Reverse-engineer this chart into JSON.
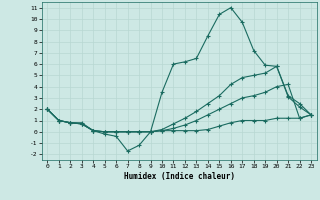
{
  "xlabel": "Humidex (Indice chaleur)",
  "bg_color": "#cde8e4",
  "grid_color": "#b8d8d2",
  "line_color": "#1a6b60",
  "xlim": [
    -0.5,
    23.5
  ],
  "ylim": [
    -2.5,
    11.5
  ],
  "xticks": [
    0,
    1,
    2,
    3,
    4,
    5,
    6,
    7,
    8,
    9,
    10,
    11,
    12,
    13,
    14,
    15,
    16,
    17,
    18,
    19,
    20,
    21,
    22,
    23
  ],
  "yticks": [
    -2,
    -1,
    0,
    1,
    2,
    3,
    4,
    5,
    6,
    7,
    8,
    9,
    10,
    11
  ],
  "lines": [
    {
      "x": [
        0,
        1,
        2,
        3,
        4,
        5,
        6,
        7,
        8,
        9,
        10,
        11,
        12,
        13,
        14,
        15,
        16,
        17,
        18,
        19,
        20,
        21,
        22,
        23
      ],
      "y": [
        2,
        1,
        0.8,
        0.8,
        0.1,
        -0.2,
        -0.4,
        -1.7,
        -1.2,
        0.0,
        3.5,
        6.0,
        6.2,
        6.5,
        8.5,
        10.4,
        11.0,
        9.7,
        7.2,
        5.9,
        5.8,
        3.1,
        2.2,
        1.5
      ]
    },
    {
      "x": [
        0,
        1,
        2,
        3,
        4,
        5,
        6,
        7,
        8,
        9,
        10,
        11,
        12,
        13,
        14,
        15,
        16,
        17,
        18,
        19,
        20,
        21,
        22,
        23
      ],
      "y": [
        2,
        1,
        0.8,
        0.7,
        0.1,
        0.0,
        0.0,
        0.0,
        0.0,
        0.0,
        0.2,
        0.7,
        1.2,
        1.8,
        2.5,
        3.2,
        4.2,
        4.8,
        5.0,
        5.2,
        5.8,
        3.2,
        2.5,
        1.5
      ]
    },
    {
      "x": [
        0,
        1,
        2,
        3,
        4,
        5,
        6,
        7,
        8,
        9,
        10,
        11,
        12,
        13,
        14,
        15,
        16,
        17,
        18,
        19,
        20,
        21,
        22,
        23
      ],
      "y": [
        2,
        1,
        0.8,
        0.7,
        0.1,
        0.0,
        0.0,
        0.0,
        0.0,
        0.0,
        0.1,
        0.3,
        0.6,
        1.0,
        1.5,
        2.0,
        2.5,
        3.0,
        3.2,
        3.5,
        4.0,
        4.2,
        1.2,
        1.5
      ]
    },
    {
      "x": [
        0,
        1,
        2,
        3,
        4,
        5,
        6,
        7,
        8,
        9,
        10,
        11,
        12,
        13,
        14,
        15,
        16,
        17,
        18,
        19,
        20,
        21,
        22,
        23
      ],
      "y": [
        2,
        1,
        0.8,
        0.7,
        0.1,
        0.0,
        0.0,
        0.0,
        0.0,
        0.0,
        0.1,
        0.1,
        0.1,
        0.1,
        0.2,
        0.5,
        0.8,
        1.0,
        1.0,
        1.0,
        1.2,
        1.2,
        1.2,
        1.5
      ]
    }
  ]
}
